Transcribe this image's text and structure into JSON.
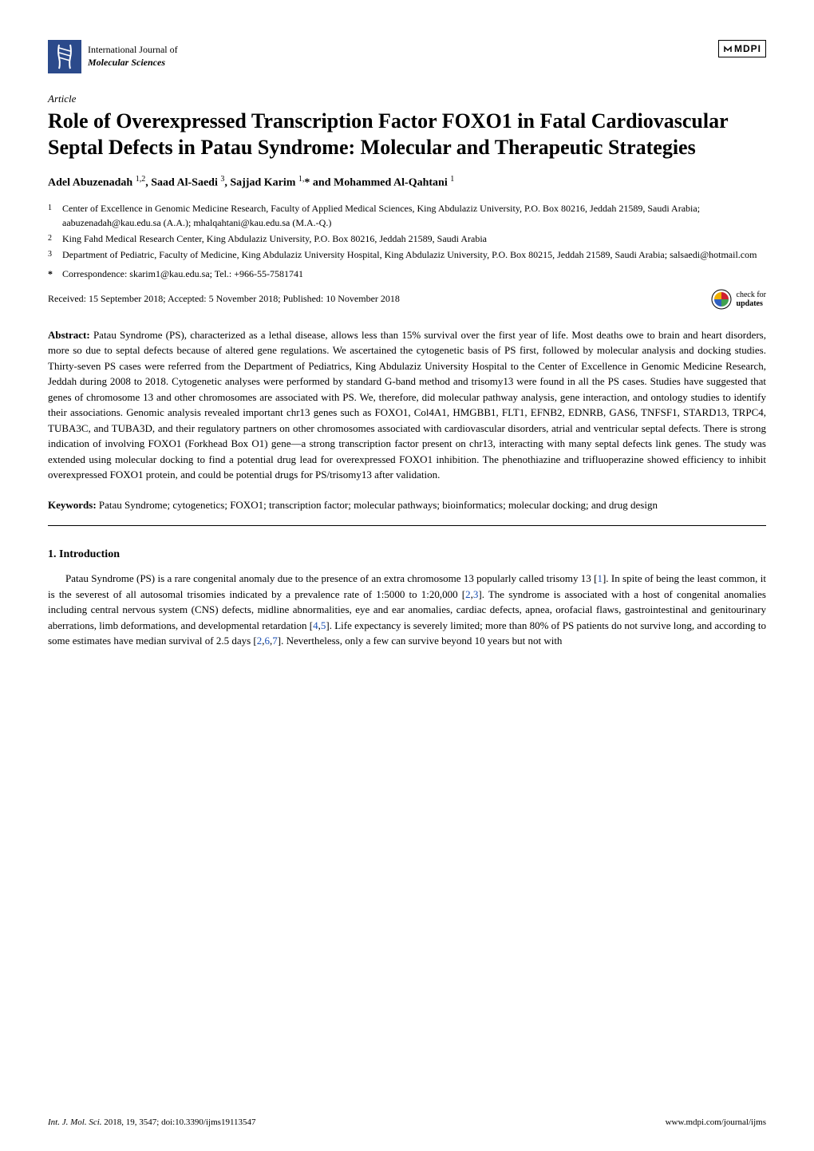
{
  "header": {
    "journal_line1": "International Journal of",
    "journal_line2": "Molecular Sciences",
    "publisher": "MDPI"
  },
  "article_type": "Article",
  "title": "Role of Overexpressed Transcription Factor FOXO1 in Fatal Cardiovascular Septal Defects in Patau Syndrome: Molecular and Therapeutic Strategies",
  "authors_html": "Adel Abuzenadah <sup>1,2</sup>, Saad Al-Saedi <sup>3</sup>, Sajjad Karim <sup>1,</sup>* and Mohammed Al-Qahtani <sup>1</sup>",
  "affiliations": [
    {
      "num": "1",
      "text": "Center of Excellence in Genomic Medicine Research, Faculty of Applied Medical Sciences, King Abdulaziz University, P.O. Box 80216, Jeddah 21589, Saudi Arabia; aabuzenadah@kau.edu.sa (A.A.); mhalqahtani@kau.edu.sa (M.A.-Q.)"
    },
    {
      "num": "2",
      "text": "King Fahd Medical Research Center, King Abdulaziz University, P.O. Box 80216, Jeddah 21589, Saudi Arabia"
    },
    {
      "num": "3",
      "text": "Department of Pediatric, Faculty of Medicine, King Abdulaziz University Hospital, King Abdulaziz University, P.O. Box 80215, Jeddah 21589, Saudi Arabia; salsaedi@hotmail.com"
    }
  ],
  "correspondence": "Correspondence: skarim1@kau.edu.sa; Tel.: +966-55-7581741",
  "dates": "Received: 15 September 2018; Accepted: 5 November 2018; Published: 10 November 2018",
  "updates_badge": {
    "line1": "check for",
    "line2": "updates"
  },
  "abstract": {
    "label": "Abstract:",
    "text": "Patau Syndrome (PS), characterized as a lethal disease, allows less than 15% survival over the first year of life. Most deaths owe to brain and heart disorders, more so due to septal defects because of altered gene regulations. We ascertained the cytogenetic basis of PS first, followed by molecular analysis and docking studies. Thirty-seven PS cases were referred from the Department of Pediatrics, King Abdulaziz University Hospital to the Center of Excellence in Genomic Medicine Research, Jeddah during 2008 to 2018. Cytogenetic analyses were performed by standard G-band method and trisomy13 were found in all the PS cases. Studies have suggested that genes of chromosome 13 and other chromosomes are associated with PS. We, therefore, did molecular pathway analysis, gene interaction, and ontology studies to identify their associations. Genomic analysis revealed important chr13 genes such as FOXO1, Col4A1, HMGBB1, FLT1, EFNB2, EDNRB, GAS6, TNFSF1, STARD13, TRPC4, TUBA3C, and TUBA3D, and their regulatory partners on other chromosomes associated with cardiovascular disorders, atrial and ventricular septal defects. There is strong indication of involving FOXO1 (Forkhead Box O1) gene—a strong transcription factor present on chr13, interacting with many septal defects link genes. The study was extended using molecular docking to find a potential drug lead for overexpressed FOXO1 inhibition. The phenothiazine and trifluoperazine showed efficiency to inhibit overexpressed FOXO1 protein, and could be potential drugs for PS/trisomy13 after validation."
  },
  "keywords": {
    "label": "Keywords:",
    "text": "Patau Syndrome; cytogenetics; FOXO1; transcription factor; molecular pathways; bioinformatics; molecular docking; and drug design"
  },
  "section1": {
    "heading": "1. Introduction",
    "para1_pre": "Patau Syndrome (PS) is a rare congenital anomaly due to the presence of an extra chromosome 13 popularly called trisomy 13 [",
    "ref1": "1",
    "para1_mid1": "]. In spite of being the least common, it is the severest of all autosomal trisomies indicated by a prevalence rate of 1:5000 to 1:20,000 [",
    "ref2": "2",
    "para1_mid2": ",",
    "ref3": "3",
    "para1_mid3": "]. The syndrome is associated with a host of congenital anomalies including central nervous system (CNS) defects, midline abnormalities, eye and ear anomalies, cardiac defects, apnea, orofacial flaws, gastrointestinal and genitourinary aberrations, limb deformations, and developmental retardation [",
    "ref4": "4",
    "para1_mid4": ",",
    "ref5": "5",
    "para1_mid5": "]. Life expectancy is severely limited; more than 80% of PS patients do not survive long, and according to some estimates have median survival of 2.5 days [",
    "ref6": "2",
    "para1_mid6": ",",
    "ref7": "6",
    "para1_mid7": ",",
    "ref8": "7",
    "para1_post": "]. Nevertheless, only a few can survive beyond 10 years but not with"
  },
  "footer": {
    "left_italic": "Int. J. Mol. Sci.",
    "left_rest": " 2018, 19, 3547; doi:10.3390/ijms19113547",
    "right": "www.mdpi.com/journal/ijms"
  },
  "colors": {
    "text": "#000000",
    "link": "#1a4fb3",
    "background": "#ffffff",
    "logo_blue": "#2b4a8b"
  }
}
